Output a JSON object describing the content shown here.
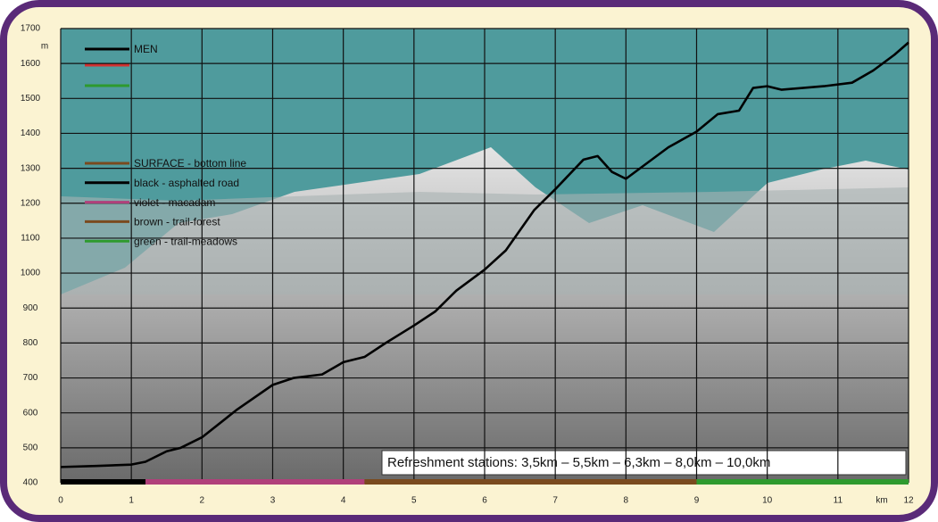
{
  "chart_data": {
    "type": "line",
    "x": [
      0,
      0.5,
      1,
      1.2,
      1.5,
      1.7,
      2,
      2.5,
      3,
      3.3,
      3.7,
      4,
      4.3,
      4.6,
      5,
      5.3,
      5.6,
      6,
      6.3,
      6.7,
      7,
      7.4,
      7.6,
      7.8,
      8,
      8.2,
      8.6,
      9,
      9.3,
      9.6,
      9.8,
      10,
      10.2,
      10.8,
      11.2,
      11.5,
      11.8,
      12
    ],
    "series": [
      {
        "name": "MEN",
        "color": "#000000",
        "values": [
          445,
          448,
          452,
          460,
          490,
          500,
          530,
          610,
          680,
          700,
          710,
          745,
          760,
          800,
          850,
          890,
          950,
          1010,
          1065,
          1180,
          1240,
          1325,
          1335,
          1290,
          1270,
          1300,
          1360,
          1405,
          1455,
          1465,
          1530,
          1535,
          1525,
          1535,
          1545,
          1580,
          1625,
          1660
        ]
      }
    ],
    "xlim": [
      0,
      12
    ],
    "xticks": [
      0,
      1,
      2,
      3,
      4,
      5,
      6,
      7,
      8,
      9,
      10,
      11,
      12
    ],
    "ylim": [
      400,
      1700
    ],
    "yticks": [
      400,
      500,
      600,
      700,
      800,
      900,
      1000,
      1100,
      1200,
      1300,
      1400,
      1500,
      1600,
      1700
    ],
    "grid": true,
    "y_unit": "m",
    "x_unit": "km",
    "surface_legend": [
      {
        "label": "SURFACE - bottom line",
        "color": "#7a4a1e"
      },
      {
        "label": "black - asphalted road",
        "color": "#000000"
      },
      {
        "label": "violet - macadam",
        "color": "#b0407a"
      },
      {
        "label": "brown - trail-forest",
        "color": "#7a4a1e"
      },
      {
        "label": "green - trail-meadows",
        "color": "#2e9a2e"
      }
    ],
    "surface": [
      {
        "start": 0,
        "end": 1.2,
        "color": "#000000"
      },
      {
        "start": 1.2,
        "end": 4.3,
        "color": "#b0407a"
      },
      {
        "start": 4.3,
        "end": 9,
        "color": "#7a4a1e"
      },
      {
        "start": 9,
        "end": 12,
        "color": "#2e9a2e"
      }
    ],
    "annotation": "Refreshment stations: 3,5km – 5,5km – 6,3km – 8,0km – 10,0km"
  }
}
